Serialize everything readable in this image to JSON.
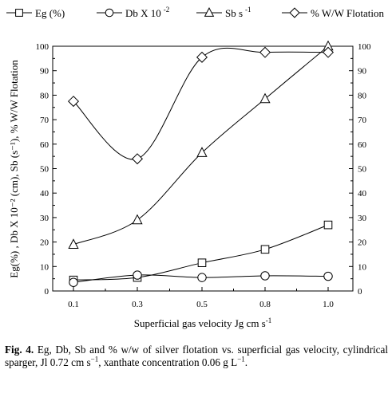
{
  "chart_data": {
    "type": "line",
    "categories": [
      "0.1",
      "0.3",
      "0.5",
      "0.8",
      "1.0"
    ],
    "xlabel": "Superficial gas velocity Jg cm s",
    "xlabel_sup": "-1",
    "ylabel_left": "Eg(%) , Db X 10⁻² (cm), Sb (s⁻¹), % W/W Flotation",
    "ylim": [
      0,
      100
    ],
    "yticks": [
      0,
      10,
      20,
      30,
      40,
      50,
      60,
      70,
      80,
      90,
      100
    ],
    "grid": false,
    "legend_position": "top",
    "series": [
      {
        "name": "Eg (%)",
        "legend_text": "Eg  (%)",
        "marker": "square",
        "values": [
          4.5,
          5.5,
          11.5,
          17,
          27
        ]
      },
      {
        "name": "Db X 10 -2",
        "legend_text": "Db X 10",
        "legend_sup": "-2",
        "marker": "circle",
        "values": [
          3.5,
          6.5,
          5.5,
          6.2,
          6
        ]
      },
      {
        "name": "Sb s-1",
        "legend_text": "Sb  s",
        "legend_sup": "-1",
        "marker": "triangle",
        "values": [
          19,
          29,
          56.5,
          78.5,
          100
        ]
      },
      {
        "name": "% W/W Flotation",
        "legend_text": "% W/W Flotation",
        "marker": "diamond",
        "values": [
          77.5,
          54,
          95.5,
          97.5,
          97.5
        ]
      }
    ]
  },
  "caption": {
    "label": "Fig. 4.",
    "text": "Eg, Db, Sb and % w/w of silver flotation vs. superficial gas velocity, cylindrical sparger, Jl 0.72 cm s",
    "sup1": "−1",
    "text2": ", xanthate concentration 0.06 g L",
    "sup2": "−1",
    "text3": "."
  }
}
